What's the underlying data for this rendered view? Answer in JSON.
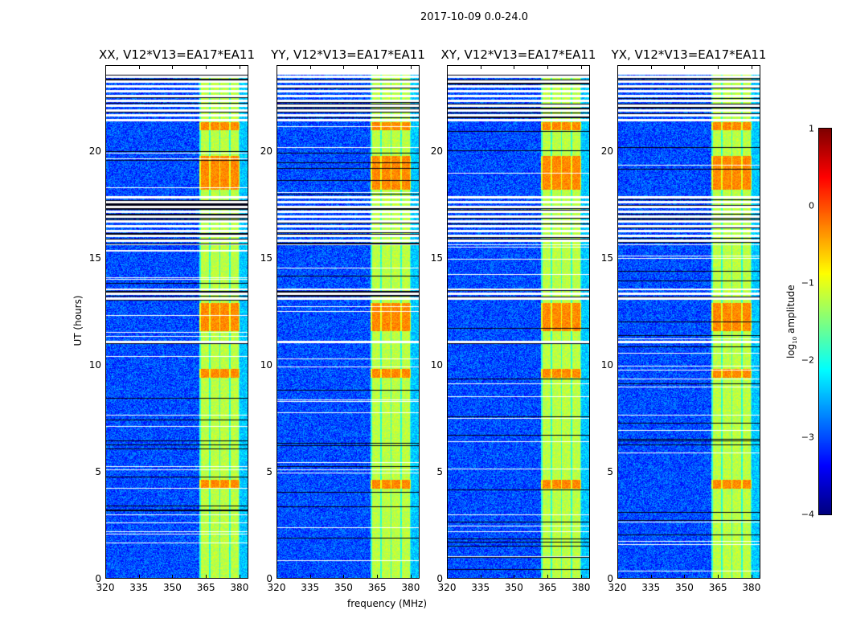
{
  "chart_data": {
    "type": "heatmap",
    "title": "2017-10-09 0.0-24.0",
    "xlabel": "frequency (MHz)",
    "ylabel": "UT (hours)",
    "xlim": [
      320,
      384
    ],
    "ylim": [
      0,
      24
    ],
    "xticks": [
      "320",
      "335",
      "350",
      "365",
      "380"
    ],
    "yticks": [
      "0",
      "5",
      "10",
      "15",
      "20"
    ],
    "panels": [
      {
        "title": "XX, V12*V13=EA17*EA11"
      },
      {
        "title": "YY, V12*V13=EA17*EA11"
      },
      {
        "title": "XY, V12*V13=EA17*EA11"
      },
      {
        "title": "YX, V12*V13=EA17*EA11"
      }
    ],
    "colorbar": {
      "label": "log10 amplitude",
      "label_main": "log",
      "label_sub": "10",
      "label_rest": " amplitude",
      "range": [
        -4,
        1
      ],
      "ticks": [
        "1",
        "0",
        "−1",
        "−2",
        "−3",
        "−4"
      ],
      "colormap": "jet"
    },
    "background_level": -3,
    "band_mhz": [
      362,
      380
    ],
    "band_level": -1.2,
    "flagged_hours": [
      [
        11.0,
        11.2
      ],
      [
        13.0,
        13.6
      ],
      [
        15.6,
        18.0
      ],
      [
        21.4,
        23.6
      ]
    ],
    "hot_hours": [
      [
        4.2,
        4.6
      ],
      [
        9.4,
        9.8
      ],
      [
        11.6,
        12.9
      ],
      [
        18.2,
        19.8
      ],
      [
        21.0,
        21.4
      ]
    ]
  }
}
